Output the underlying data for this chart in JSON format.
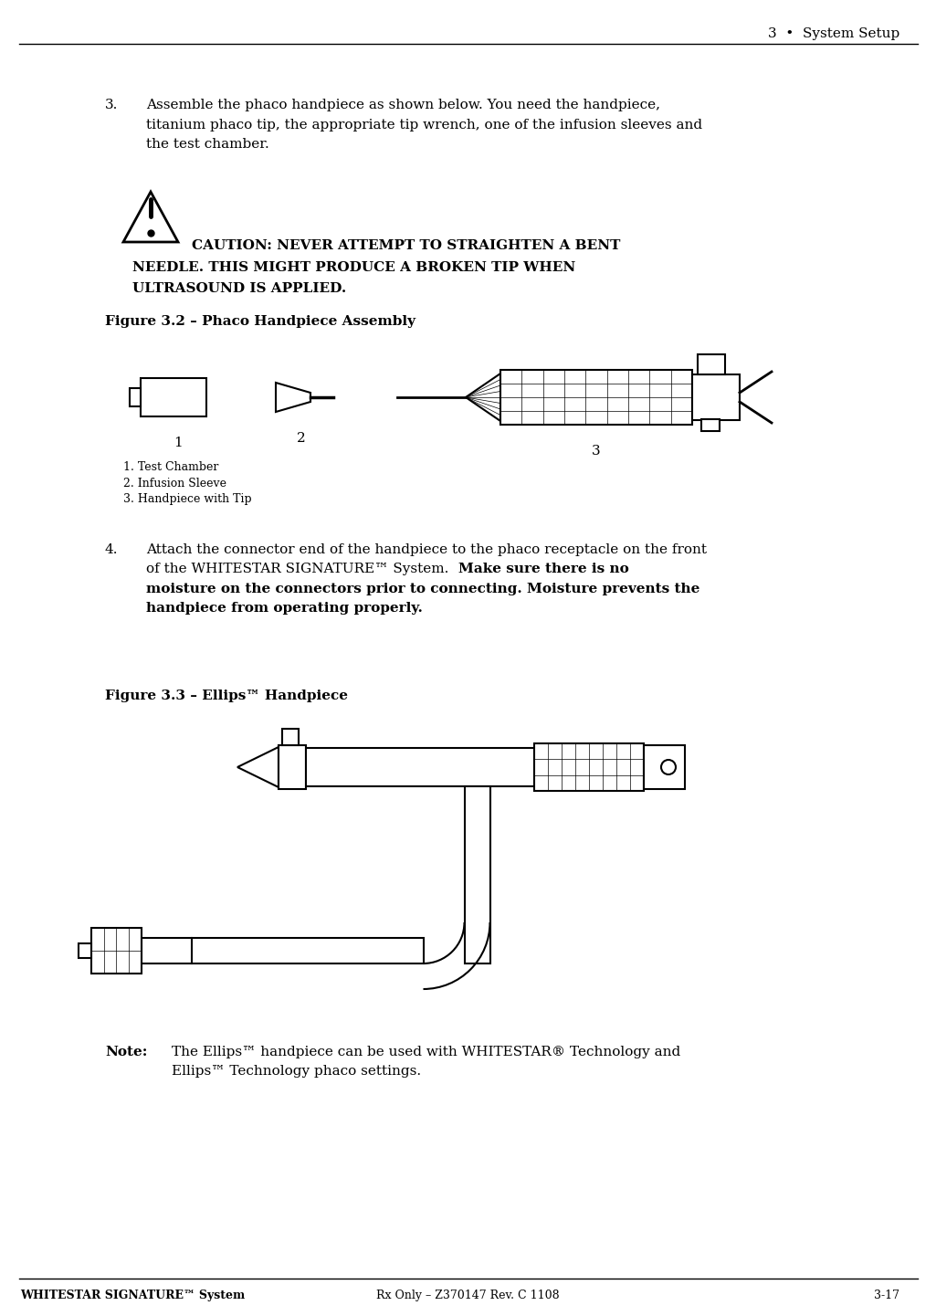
{
  "bg_color": "#ffffff",
  "header_text": "3  •  System Setup",
  "header_fontsize": 11,
  "footer_left": "WHITESTAR SIGNATURE™ System",
  "footer_center": "Rx Only – Z370147 Rev. C 1108",
  "footer_right": "3-17",
  "footer_fontsize": 9,
  "step3_number": "3.",
  "step3_line1": "Assemble the phaco handpiece as shown below. You need the handpiece,",
  "step3_line2": "titanium phaco tip, the appropriate tip wrench, one of the infusion sleeves and",
  "step3_line3": "the test chamber.",
  "caution_line1": "CAUTION: NEVER ATTEMPT TO STRAIGHTEN A BENT",
  "caution_line2": "NEEDLE. THIS MIGHT PRODUCE A BROKEN TIP WHEN",
  "caution_line3": "ULTRASOUND IS APPLIED.",
  "fig32_caption": "Figure 3.2 – Phaco Handpiece Assembly",
  "legend1": "1. Test Chamber",
  "legend2": "2. Infusion Sleeve",
  "legend3": "3. Handpiece with Tip",
  "step4_number": "4.",
  "step4_line1": "Attach the connector end of the handpiece to the phaco receptacle on the front",
  "step4_line2_normal": "of the WHITESTAR SIGNATURE™ System. ",
  "step4_line2_bold": "Make sure there is no",
  "step4_line3": "moisture on the connectors prior to connecting. Moisture prevents the",
  "step4_line4": "handpiece from operating properly.",
  "fig33_caption": "Figure 3.3 – Ellips™ Handpiece",
  "note_label": "Note:",
  "note_line1": "The Ellips™ handpiece can be used with WHITESTAR® Technology and",
  "note_line2": "Ellips™ Technology phaco settings.",
  "text_fs": 11,
  "bold_fs": 11,
  "fig_cap_fs": 11,
  "legend_fs": 9,
  "header_fs": 11,
  "footer_fs": 9
}
